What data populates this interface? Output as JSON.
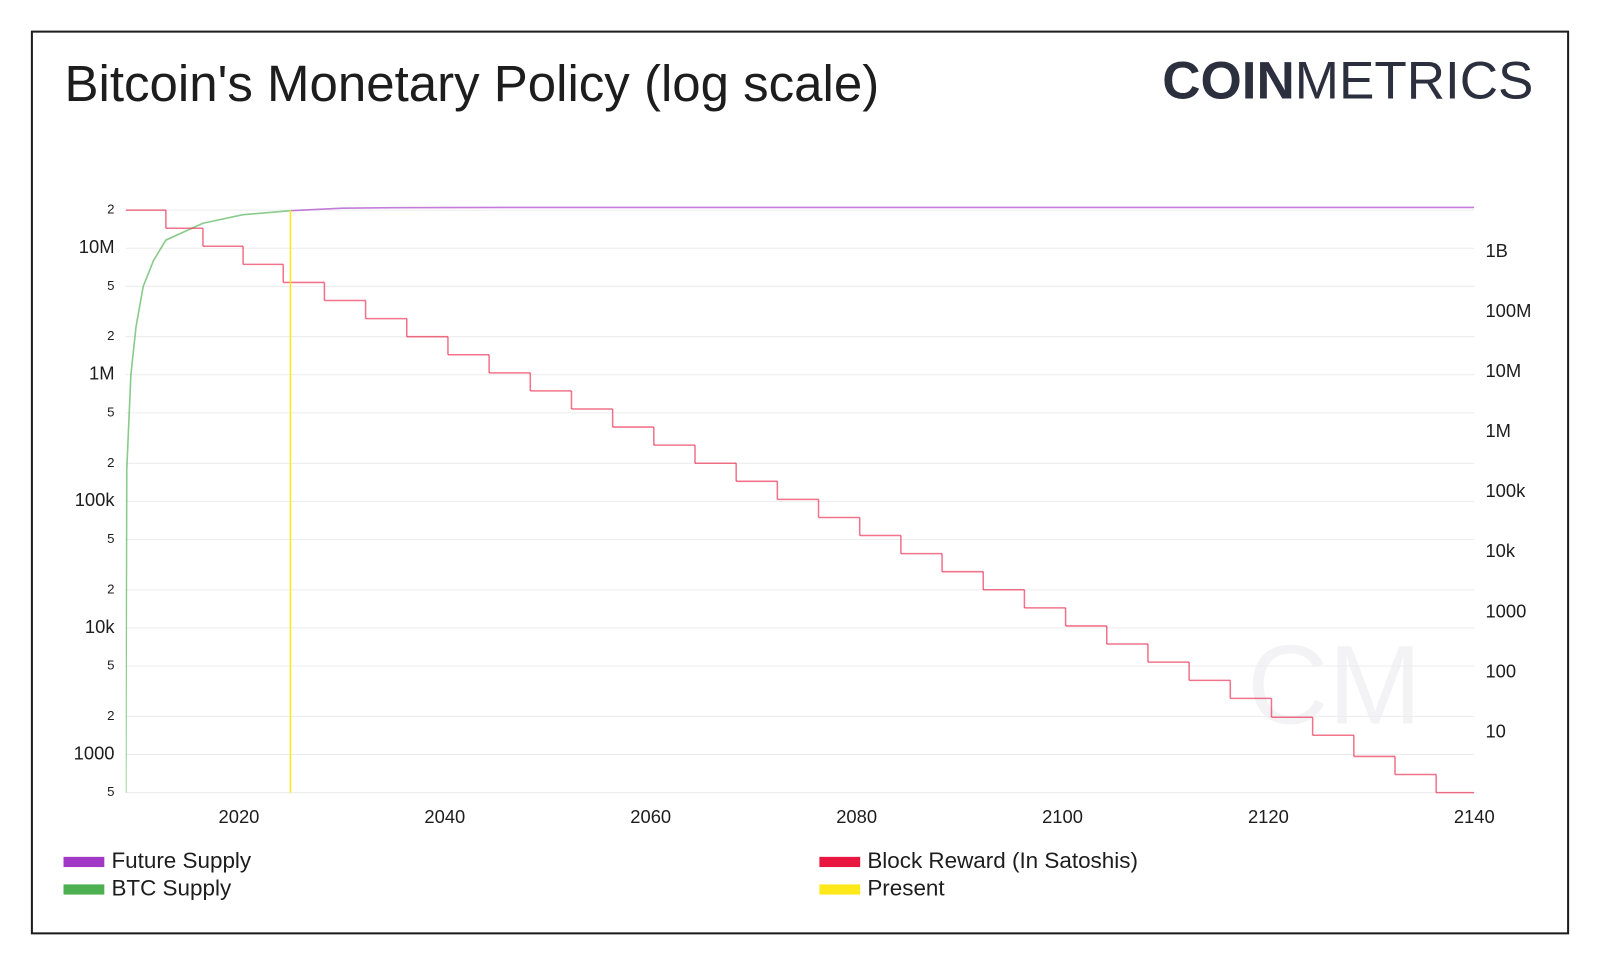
{
  "chart_data": {
    "type": "line",
    "title": "Bitcoin's Monetary Policy (log scale)",
    "brand": {
      "bold": "COIN",
      "light": "METRICS"
    },
    "watermark": "CM",
    "log_y": true,
    "log_y2": true,
    "grid": true,
    "xlim": [
      2009,
      2140
    ],
    "xticks": [
      2020,
      2040,
      2060,
      2080,
      2100,
      2120,
      2140
    ],
    "ylim": [
      500,
      20000000
    ],
    "yticks": [
      {
        "value": 500,
        "label": "5"
      },
      1000,
      {
        "value": 2000,
        "label": "2"
      },
      {
        "value": 5000,
        "label": "5"
      },
      {
        "value": 10000,
        "label": "10k"
      },
      {
        "value": 20000,
        "label": "2"
      },
      {
        "value": 50000,
        "label": "5"
      },
      {
        "value": 100000,
        "label": "100k"
      },
      {
        "value": 200000,
        "label": "2"
      },
      {
        "value": 500000,
        "label": "5"
      },
      {
        "value": 1000000,
        "label": "1M"
      },
      {
        "value": 2000000,
        "label": "2"
      },
      {
        "value": 5000000,
        "label": "5"
      },
      {
        "value": 10000000,
        "label": "10M"
      },
      {
        "value": 20000000,
        "label": "2"
      }
    ],
    "y2lim": [
      1,
      5000000000
    ],
    "y2ticks": [
      10,
      100,
      1000,
      {
        "value": 10000,
        "label": "10k"
      },
      {
        "value": 100000,
        "label": "100k"
      },
      {
        "value": 1000000,
        "label": "1M"
      },
      {
        "value": 10000000,
        "label": "10M"
      },
      {
        "value": 100000000,
        "label": "100M"
      },
      {
        "value": 1000000000,
        "label": "1B"
      }
    ],
    "series": [
      {
        "name": "Future Supply",
        "color": "#a238c6",
        "x": [
          2025.0,
          2030,
          2035,
          2040,
          2060,
          2140
        ],
        "values": [
          19800000,
          20700000,
          20900000,
          20980000,
          21000000,
          21000000
        ]
      },
      {
        "name": "BTC Supply",
        "color": "#4caf50",
        "x": [
          2009.0,
          2009.1,
          2009.5,
          2010.0,
          2010.7,
          2011.7,
          2012.9,
          2016.5,
          2020.4,
          2025.0
        ],
        "values": [
          500,
          178000,
          1000000,
          2400000,
          5000000,
          8000000,
          11600000,
          15750000,
          18400000,
          19800000
        ]
      },
      {
        "name": "Block Reward (In Satoshis)",
        "color": "#e8173f",
        "axis": "y2",
        "step": true,
        "x": [
          2009,
          2012.9,
          2016.5,
          2020.4,
          2024.3,
          2028.3,
          2032.3,
          2036.3,
          2040.3,
          2044.3,
          2048.3,
          2052.3,
          2056.3,
          2060.3,
          2064.3,
          2068.3,
          2072.3,
          2076.3,
          2080.3,
          2084.3,
          2088.3,
          2092.3,
          2096.3,
          2100.3,
          2104.3,
          2108.3,
          2112.3,
          2116.3,
          2120.3,
          2124.3,
          2128.3,
          2132.3,
          2136.3
        ],
        "values": [
          5000000000,
          2500000000,
          1250000000,
          625000000,
          312500000,
          156250000,
          78125000,
          39062500,
          19531250,
          9765625,
          4882812,
          2441406,
          1220703,
          610351,
          305175,
          152587,
          76293,
          38146,
          19073,
          9536,
          4768,
          2384,
          1192,
          596,
          298,
          149,
          74,
          37,
          18,
          9,
          4,
          2,
          1
        ]
      },
      {
        "name": "Present",
        "color": "#ffe81a",
        "vline": true,
        "x": [
          2025.0
        ]
      }
    ]
  }
}
